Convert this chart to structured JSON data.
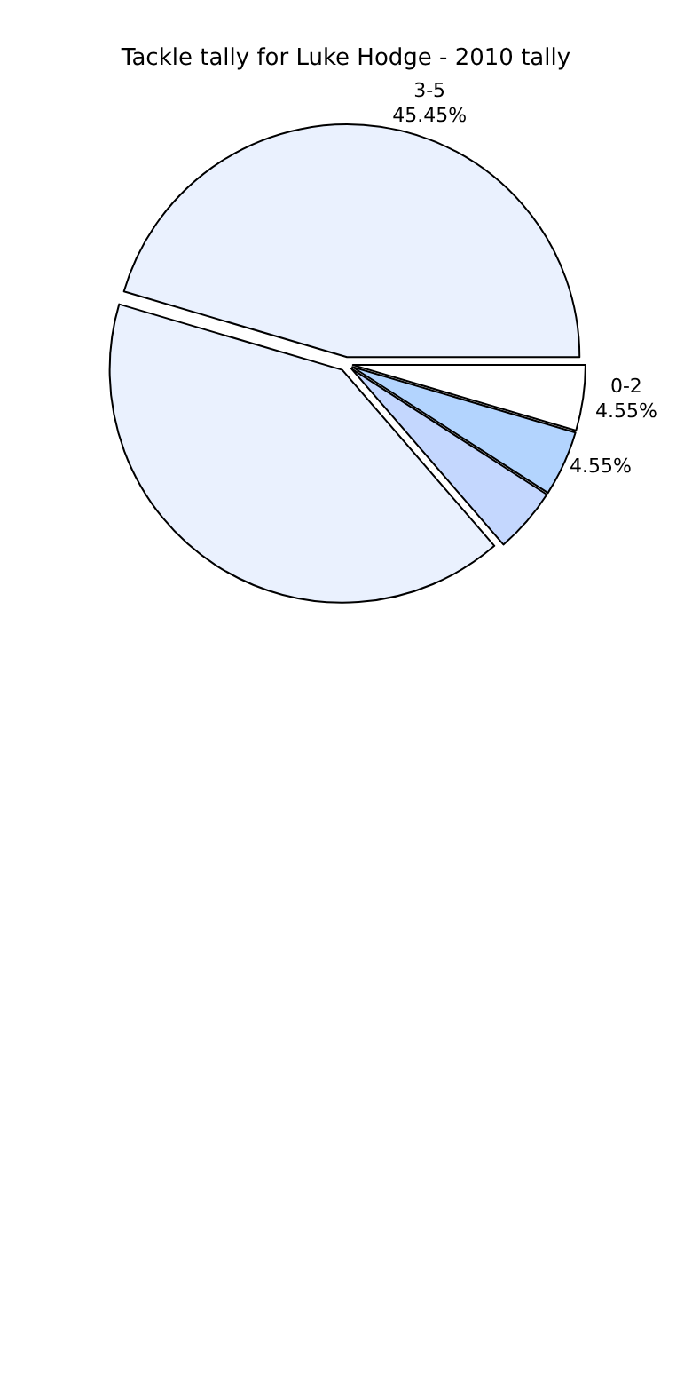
{
  "chart_data": {
    "type": "pie",
    "title": "Tackle tally for Luke Hodge - 2010 tally",
    "categories": [
      "0-2",
      "3-5",
      null,
      null,
      null
    ],
    "values": [
      4.55,
      45.45,
      40.91,
      4.55,
      4.55
    ],
    "value_labels": [
      "4.55%",
      "45.45%",
      null,
      null,
      "4.55%"
    ],
    "colors": [
      "#ffffff",
      "#eaf1fe",
      "#eaf1fe",
      "#c4d7fe",
      "#b3d4fe"
    ],
    "legend": false
  }
}
